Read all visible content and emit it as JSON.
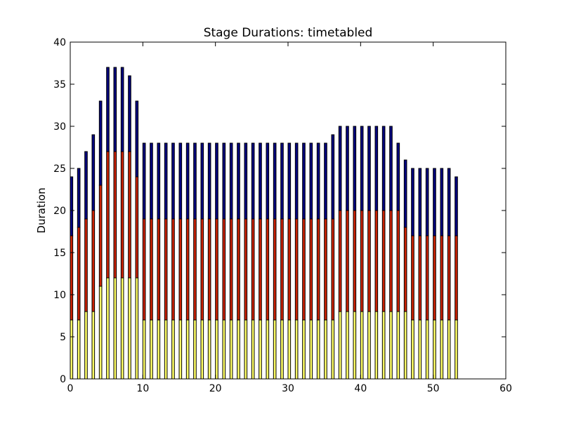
{
  "chart_data": {
    "type": "bar",
    "title": "Stage Durations: timetabled",
    "xlabel": "",
    "ylabel": "Duration",
    "xlim": [
      0,
      60
    ],
    "ylim": [
      0,
      40
    ],
    "xticks": [
      0,
      10,
      20,
      30,
      40,
      50,
      60
    ],
    "yticks": [
      0,
      5,
      10,
      15,
      20,
      25,
      30,
      35,
      40
    ],
    "grid": false,
    "stacked": true,
    "x": [
      0,
      1,
      2,
      3,
      4,
      5,
      6,
      7,
      8,
      9,
      10,
      11,
      12,
      13,
      14,
      15,
      16,
      17,
      18,
      19,
      20,
      21,
      22,
      23,
      24,
      25,
      26,
      27,
      28,
      29,
      30,
      31,
      32,
      33,
      34,
      35,
      36,
      37,
      38,
      39,
      40,
      41,
      42,
      43,
      44,
      45,
      46,
      47,
      48,
      49,
      50,
      51,
      52,
      53
    ],
    "series": [
      {
        "color": "#ffff66",
        "values": [
          7,
          7,
          8,
          8,
          11,
          12,
          12,
          12,
          12,
          12,
          7,
          7,
          7,
          7,
          7,
          7,
          7,
          7,
          7,
          7,
          7,
          7,
          7,
          7,
          7,
          7,
          7,
          7,
          7,
          7,
          7,
          7,
          7,
          7,
          7,
          7,
          7,
          8,
          8,
          8,
          8,
          8,
          8,
          8,
          8,
          8,
          8,
          7,
          7,
          7,
          7,
          7,
          7,
          7
        ]
      },
      {
        "color": "#cc2200",
        "values": [
          10,
          11,
          11,
          12,
          12,
          15,
          15,
          15,
          15,
          12,
          12,
          12,
          12,
          12,
          12,
          12,
          12,
          12,
          12,
          12,
          12,
          12,
          12,
          12,
          12,
          12,
          12,
          12,
          12,
          12,
          12,
          12,
          12,
          12,
          12,
          12,
          12,
          12,
          12,
          12,
          12,
          12,
          12,
          12,
          12,
          12,
          10,
          10,
          10,
          10,
          10,
          10,
          10,
          10
        ]
      },
      {
        "color": "#000080",
        "values": [
          7,
          7,
          8,
          9,
          10,
          10,
          10,
          10,
          9,
          9,
          9,
          9,
          9,
          9,
          9,
          9,
          9,
          9,
          9,
          9,
          9,
          9,
          9,
          9,
          9,
          9,
          9,
          9,
          9,
          9,
          9,
          9,
          9,
          9,
          9,
          9,
          10,
          10,
          10,
          10,
          10,
          10,
          10,
          10,
          10,
          8,
          8,
          8,
          8,
          8,
          8,
          8,
          8,
          7
        ]
      }
    ]
  }
}
